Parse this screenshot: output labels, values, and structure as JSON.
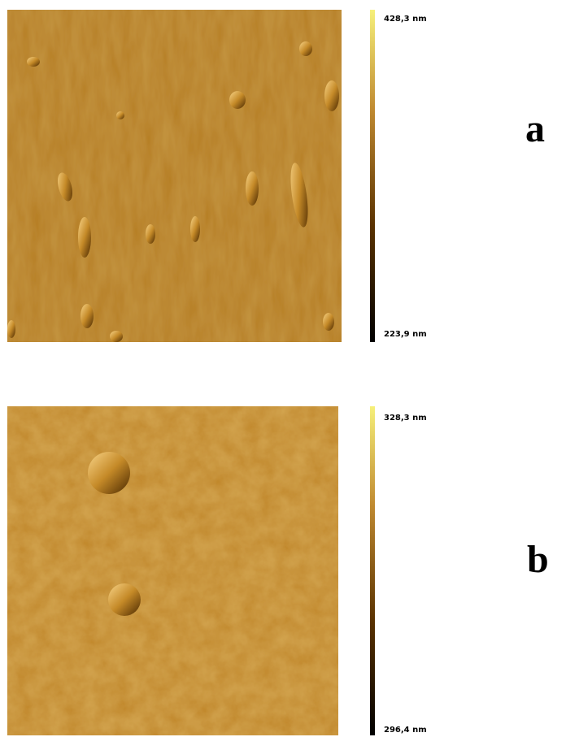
{
  "panels": [
    {
      "label": "a",
      "scale_max": "428,3 nm",
      "scale_min": "223,9 nm"
    },
    {
      "label": "b",
      "scale_max": "328,3 nm",
      "scale_min": "296,4 nm"
    }
  ]
}
